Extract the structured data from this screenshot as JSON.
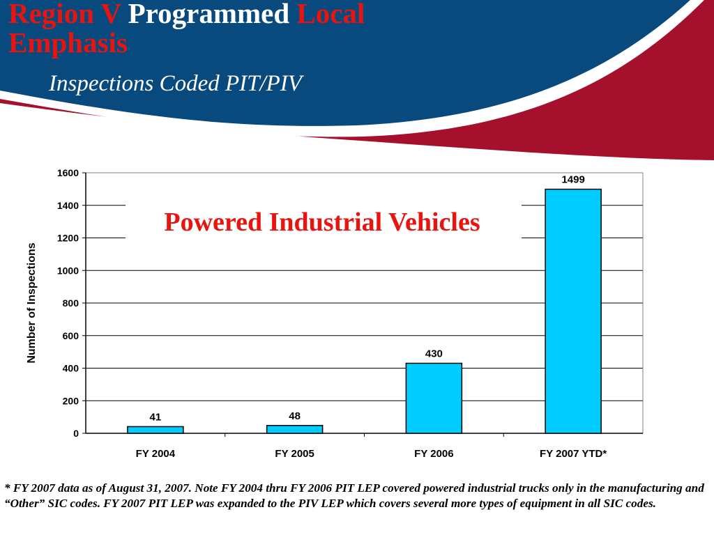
{
  "slide": {
    "title_part1": "Region V",
    "title_part2": "Programmed",
    "title_part3": "Local",
    "title_part4": "Emphasis",
    "subtitle": "Inspections Coded PIT/PIV",
    "footnote": "* FY 2007 data as of August 31, 2007.  Note FY 2004 thru FY 2006 PIT LEP covered powered industrial trucks only in the manufacturing and “Other” SIC codes.  FY 2007 PIT LEP was expanded to the PIV LEP which covers several more types of equipment in all SIC codes."
  },
  "colors": {
    "banner_blue": "#084a7e",
    "banner_red": "#a5102c",
    "title_red": "#e8140f",
    "bar_fill": "#00ccff",
    "overlay_text": "#e8140f"
  },
  "chart_data": {
    "type": "bar",
    "title": "Powered Industrial Vehicles",
    "categories": [
      "FY 2004",
      "FY 2005",
      "FY 2006",
      "FY 2007 YTD*"
    ],
    "values": [
      41,
      48,
      430,
      1499
    ],
    "data_labels": [
      "41",
      "48",
      "430",
      "1499"
    ],
    "ylabel": "Number of Inspections",
    "xlabel": "",
    "ylim": [
      0,
      1600
    ],
    "yticks": [
      0,
      200,
      400,
      600,
      800,
      1000,
      1200,
      1400,
      1600
    ],
    "ytick_labels": [
      "0",
      "200",
      "400",
      "600",
      "800",
      "1000",
      "1200",
      "1400",
      "1600"
    ],
    "grid": true,
    "legend": "none"
  }
}
